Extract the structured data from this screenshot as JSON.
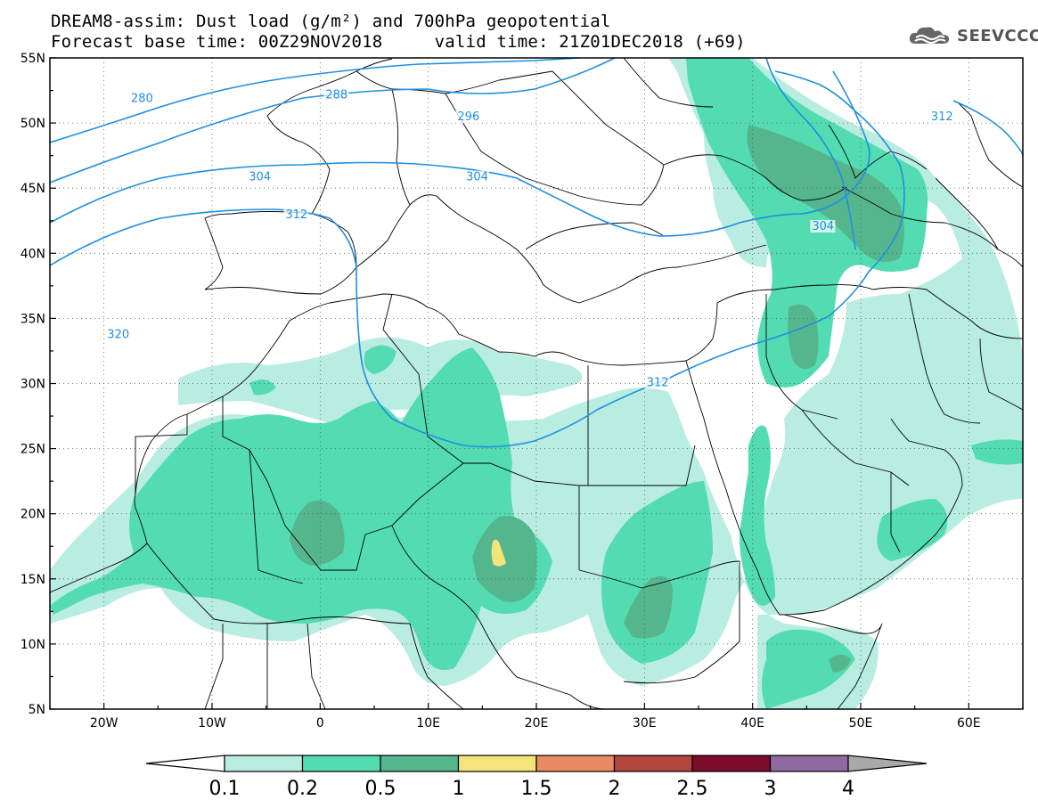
{
  "header": {
    "title_line1": "DREAM8-assim: Dust load (g/m²) and 700hPa geopotential",
    "title_line2": "Forecast base time: 00Z29NOV2018     valid time: 21Z01DEC2018 (+69)",
    "logo_text": "SEEVCCC",
    "logo_icon": "cloud-logo-icon"
  },
  "map": {
    "lon_range": [
      -25,
      65
    ],
    "lat_range": [
      5,
      55
    ],
    "lon_ticks": [
      {
        "lon": -20,
        "label": "20W"
      },
      {
        "lon": -10,
        "label": "10W"
      },
      {
        "lon": 0,
        "label": "0"
      },
      {
        "lon": 10,
        "label": "10E"
      },
      {
        "lon": 20,
        "label": "20E"
      },
      {
        "lon": 30,
        "label": "30E"
      },
      {
        "lon": 40,
        "label": "40E"
      },
      {
        "lon": 50,
        "label": "50E"
      },
      {
        "lon": 60,
        "label": "60E"
      }
    ],
    "lat_ticks": [
      {
        "lat": 55,
        "label": "55N"
      },
      {
        "lat": 50,
        "label": "50N"
      },
      {
        "lat": 45,
        "label": "45N"
      },
      {
        "lat": 40,
        "label": "40N"
      },
      {
        "lat": 35,
        "label": "35N"
      },
      {
        "lat": 30,
        "label": "30N"
      },
      {
        "lat": 25,
        "label": "25N"
      },
      {
        "lat": 20,
        "label": "20N"
      },
      {
        "lat": 15,
        "label": "15N"
      },
      {
        "lat": 10,
        "label": "10N"
      },
      {
        "lat": 5,
        "label": "5N"
      }
    ],
    "grid": "dotted",
    "contour_color": "#1f8fe0",
    "contour_labels": [
      {
        "value": "280",
        "lon": -17.5,
        "lat": 51.6
      },
      {
        "value": "288",
        "lon": 0.5,
        "lat": 51.9
      },
      {
        "value": "296",
        "lon": 12.7,
        "lat": 50.2
      },
      {
        "value": "304",
        "lon": -6.6,
        "lat": 45.6
      },
      {
        "value": "304",
        "lon": 13.5,
        "lat": 45.6
      },
      {
        "value": "304",
        "lon": 45.5,
        "lat": 41.8
      },
      {
        "value": "312",
        "lon": -3.2,
        "lat": 42.7
      },
      {
        "value": "312",
        "lon": 56.5,
        "lat": 50.2
      },
      {
        "value": "312",
        "lon": 30.2,
        "lat": 29.8
      },
      {
        "value": "320",
        "lon": -19.7,
        "lat": 33.5
      }
    ]
  },
  "colorbar": {
    "levels": [
      "0.1",
      "0.2",
      "0.5",
      "1",
      "1.5",
      "2",
      "2.5",
      "3",
      "4"
    ],
    "colors": [
      "#b9ede2",
      "#53dcb1",
      "#55b68e",
      "#f3e57a",
      "#e98a63",
      "#b0463d",
      "#7d0b2a",
      "#8e6aa0"
    ],
    "under_color": "#ffffff",
    "over_color": "#a9a9a9"
  },
  "dust_colors": {
    "low": "#b9ede2",
    "medium": "#53dcb1",
    "high": "#55b68e",
    "peak": "#f3e57a"
  }
}
